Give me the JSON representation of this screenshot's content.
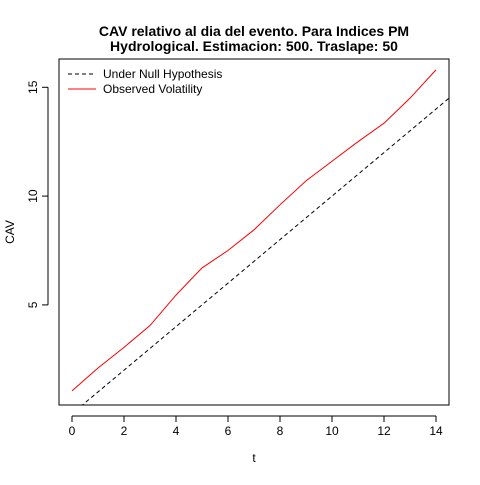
{
  "chart_data": {
    "type": "line",
    "title": "CAV relativo al dia del evento. Para Indices PM",
    "subtitle": "Hydrological. Estimacion: 500. Traslape: 50",
    "xlabel": "t",
    "ylabel": "CAV",
    "xlim": [
      -0.5,
      14.5
    ],
    "ylim": [
      0.4,
      16.3
    ],
    "xticks": [
      0,
      2,
      4,
      6,
      8,
      10,
      12,
      14
    ],
    "yticks": [
      5,
      10,
      15
    ],
    "grid": false,
    "legend_position": "top-left",
    "series": [
      {
        "name": "Under Null Hypothesis",
        "style": "dashed",
        "color": "#000000",
        "x": [
          -0.5,
          14.5
        ],
        "y": [
          -0.5,
          14.5
        ]
      },
      {
        "name": "Observed Volatility",
        "style": "solid",
        "color": "#ff0000",
        "x": [
          0,
          1,
          2,
          3,
          4,
          5,
          6,
          7,
          8,
          9,
          10,
          11,
          12,
          13,
          14
        ],
        "y": [
          1.05,
          2.1,
          3.05,
          4.05,
          5.45,
          6.7,
          7.5,
          8.45,
          9.6,
          10.7,
          11.6,
          12.5,
          13.35,
          14.5,
          15.8
        ]
      }
    ]
  }
}
